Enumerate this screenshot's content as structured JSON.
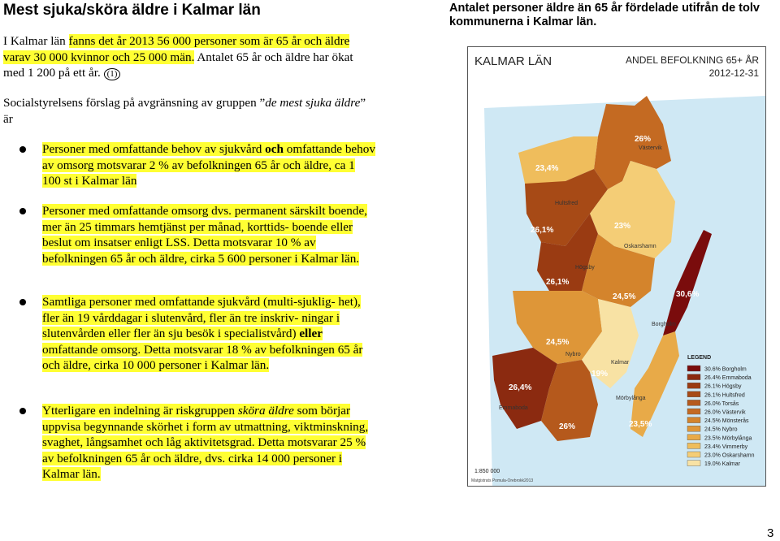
{
  "title": "Mest sjuka/sköra äldre i Kalmar län",
  "map_caption": "Antalet personer äldre än 65 år fördelade utifrån de tolv kommunerna i Kalmar län.",
  "intro": {
    "plain1": "I Kalmar län ",
    "hl": "fanns det år 2013 56 000 personer som är 65 år och äldre varav 30 000 kvinnor och 25 000 män.",
    "plain2": " Antalet 65 år och äldre har ökat med 1 200 på ett år.",
    "ref": "(1)"
  },
  "definition": {
    "pre": "Socialstyrelsens förslag på avgränsning av gruppen ”",
    "em": "de mest sjuka äldre",
    "post": "” är"
  },
  "bullets": [
    {
      "pre": "Personer med omfattande behov av sjukvård ",
      "bold": "och",
      "post": " omfattande behov av omsorg motsvarar 2 % av befolkningen 65 år och äldre, ca 1 100 st i Kalmar län"
    },
    {
      "text": "Personer med omfattande omsorg dvs. permanent särskilt boende, mer än 25 timmars hemtjänst per månad, korttids- boende eller beslut om insatser enligt LSS. Detta motsvarar 10 % av befolkningen 65 år och äldre, cirka 5 600 personer i Kalmar län."
    },
    {
      "pre": "Samtliga personer med omfattande sjukvård (multi-sjuklig- het), fler än 19 vårddagar i slutenvård, fler än tre inskriv- ningar i slutenvården eller fler än sju besök i specialistvård) ",
      "bold": "eller",
      "post": " omfattande omsorg. Detta motsvarar 18 % av befolkningen 65 år och äldre, cirka 10 000 personer i Kalmar län."
    },
    {
      "pre": "Ytterligare en indelning är riskgruppen ",
      "em": "sköra äldre",
      "post": " som börjar uppvisa begynnande skörhet i form av utmattning, viktminskning, svaghet, långsamhet och låg aktivitetsgrad. Detta motsvarar 25 % av befolkningen 65 år och äldre, dvs. cirka 14 000 personer i Kalmar län."
    }
  ],
  "map": {
    "header_left": "KALMAR LÄN",
    "header_right": "ANDEL BEFOLKNING 65+ ÅR",
    "date": "2012-12-31",
    "scale": "1:850 000",
    "credit": "Matgistrats Pomula-Orebrokk2013",
    "legend_title": "LEGEND",
    "legend": [
      {
        "value": "30.6%",
        "name": "Borgholm",
        "color": "#7a0c0c"
      },
      {
        "value": "26.4%",
        "name": "Emmaboda",
        "color": "#8b2a10"
      },
      {
        "value": "26.1%",
        "name": "Högsby",
        "color": "#9a3b12"
      },
      {
        "value": "26.1%",
        "name": "Hultsfred",
        "color": "#a74a16"
      },
      {
        "value": "26.0%",
        "name": "Torsås",
        "color": "#b5591c"
      },
      {
        "value": "26.0%",
        "name": "Västervik",
        "color": "#c46a22"
      },
      {
        "value": "24.5%",
        "name": "Mönsterås",
        "color": "#d4842c"
      },
      {
        "value": "24.5%",
        "name": "Nybro",
        "color": "#de9638"
      },
      {
        "value": "23.5%",
        "name": "Mörbylånga",
        "color": "#e8aa48"
      },
      {
        "value": "23.4%",
        "name": "Vimmerby",
        "color": "#efbd5c"
      },
      {
        "value": "23.0%",
        "name": "Oskarshamn",
        "color": "#f4cd76"
      },
      {
        "value": "19.0%",
        "name": "Kalmar",
        "color": "#f8e2a4"
      }
    ],
    "labels": {
      "vastervik_pct": "26%",
      "vastervik_name": "Västervik",
      "vimmerby_pct": "23,4%",
      "hultsfred_name": "Hultsfred",
      "hultsfred_pct": "26,1%",
      "oskarshamn_pct": "23%",
      "oskarshamn_name": "Oskarshamn",
      "hogsby_name": "Högsby",
      "hogsby_pct": "26,1%",
      "monsteras_pct": "24,5%",
      "borgholm_pct": "30,6%",
      "borgholm_name": "Borgholm",
      "nybro_pct": "24,5%",
      "nybro_name": "Nybro",
      "kalmar_name": "Kalmar",
      "kalmar_pct": "19%",
      "emmaboda_pct": "26,4%",
      "emmaboda_name": "Emmaboda",
      "morbylanga_name": "Mörbylånga",
      "torsas_pct": "26%",
      "morbylanga_pct": "23,5%"
    }
  },
  "page_number": "3"
}
